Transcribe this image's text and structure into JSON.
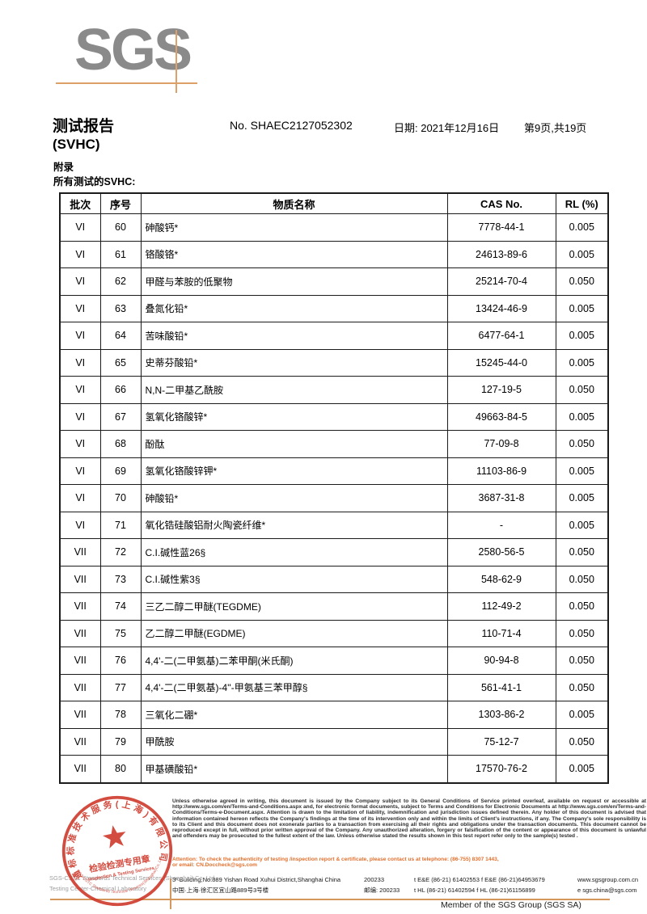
{
  "colors": {
    "logo_gray": "#8a8a8a",
    "rule_orange": "#dda167",
    "attention_orange": "#e0702e",
    "stamp_red": "#ce3426",
    "table_border": "#1b1b1b"
  },
  "header": {
    "logo_text": "SGS",
    "report_title": "测试报告",
    "report_subtitle": "(SVHC)",
    "report_no": "No. SHAEC2127052302",
    "date": "日期: 2021年12月16日",
    "page": "第9页,共19页",
    "appendix": "附录",
    "section_label": "所有测试的SVHC:"
  },
  "table": {
    "columns": [
      "批次",
      "序号",
      "物质名称",
      "CAS No.",
      "RL (%)"
    ],
    "rows": [
      {
        "batch": "VI",
        "no": "60",
        "name": "砷酸钙*",
        "cas": "7778-44-1",
        "rl": "0.005"
      },
      {
        "batch": "VI",
        "no": "61",
        "name": "铬酸铬*",
        "cas": "24613-89-6",
        "rl": "0.005"
      },
      {
        "batch": "VI",
        "no": "62",
        "name": "甲醛与苯胺的低聚物",
        "cas": "25214-70-4",
        "rl": "0.050"
      },
      {
        "batch": "VI",
        "no": "63",
        "name": "叠氮化铅*",
        "cas": "13424-46-9",
        "rl": "0.005"
      },
      {
        "batch": "VI",
        "no": "64",
        "name": "苦味酸铅*",
        "cas": "6477-64-1",
        "rl": "0.005"
      },
      {
        "batch": "VI",
        "no": "65",
        "name": "史蒂芬酸铅*",
        "cas": "15245-44-0",
        "rl": "0.005"
      },
      {
        "batch": "VI",
        "no": "66",
        "name": "N,N-二甲基乙酰胺",
        "cas": "127-19-5",
        "rl": "0.050"
      },
      {
        "batch": "VI",
        "no": "67",
        "name": "氢氧化铬酸锌*",
        "cas": "49663-84-5",
        "rl": "0.005"
      },
      {
        "batch": "VI",
        "no": "68",
        "name": "酚酞",
        "cas": "77-09-8",
        "rl": "0.050"
      },
      {
        "batch": "VI",
        "no": "69",
        "name": "氢氧化铬酸锌钾*",
        "cas": "11103-86-9",
        "rl": "0.005"
      },
      {
        "batch": "VI",
        "no": "70",
        "name": "砷酸铅*",
        "cas": "3687-31-8",
        "rl": "0.005"
      },
      {
        "batch": "VI",
        "no": "71",
        "name": "氧化锆硅酸铝耐火陶瓷纤维*",
        "cas": "-",
        "rl": "0.005"
      },
      {
        "batch": "VII",
        "no": "72",
        "name": "C.I.碱性蓝26§",
        "cas": "2580-56-5",
        "rl": "0.050"
      },
      {
        "batch": "VII",
        "no": "73",
        "name": "C.I.碱性紫3§",
        "cas": "548-62-9",
        "rl": "0.050"
      },
      {
        "batch": "VII",
        "no": "74",
        "name": "三乙二醇二甲醚(TEGDME)",
        "cas": "112-49-2",
        "rl": "0.050"
      },
      {
        "batch": "VII",
        "no": "75",
        "name": "乙二醇二甲醚(EGDME)",
        "cas": "110-71-4",
        "rl": "0.050"
      },
      {
        "batch": "VII",
        "no": "76",
        "name": "4,4'-二(二甲氨基)二苯甲酮(米氏酮)",
        "cas": "90-94-8",
        "rl": "0.050"
      },
      {
        "batch": "VII",
        "no": "77",
        "name": "4,4'-二(二甲氨基)-4''-甲氨基三苯甲醇§",
        "cas": "561-41-1",
        "rl": "0.050"
      },
      {
        "batch": "VII",
        "no": "78",
        "name": "三氧化二硼*",
        "cas": "1303-86-2",
        "rl": "0.005"
      },
      {
        "batch": "VII",
        "no": "79",
        "name": "甲酰胺",
        "cas": "75-12-7",
        "rl": "0.050"
      },
      {
        "batch": "VII",
        "no": "80",
        "name": "甲基磺酸铅*",
        "cas": "17570-76-2",
        "rl": "0.005"
      }
    ]
  },
  "footer": {
    "disclaimer": "Unless otherwise agreed in writing, this document is issued by the Company subject to its General Conditions of Service printed overleaf, available on request or accessible at http://www.sgs.com/en/Terms-and-Conditions.aspx and, for electronic format documents, subject to Terms and Conditions for Electronic Documents at http://www.sgs.com/en/Terms-and-Conditions/Terms-e-Document.aspx. Attention is drawn to the limitation of liability, indemnification and jurisdiction issues defined therein. Any holder of this document is advised that information contained hereon reflects the Company's findings at the time of its intervention only and within the limits of Client's instructions, if any. The Company's sole responsibility is to its Client and this document does not exonerate parties to a transaction from exercising all their rights and obligations under the transaction documents. This document cannot be reproduced except in full, without prior written approval of the Company. Any unauthorized alteration, forgery or falsification of the content or appearance of this document is unlawful and offenders may be prosecuted to the fullest extent of the law. Unless otherwise stated the results shown in this test report refer only to the sample(s) tested .",
    "attention_line1": "Attention: To check the authenticity of testing /inspection report & certificate, please contact us at telephone: (86-755) 8307 1443,",
    "attention_line2": "or email: CN.Doccheck@sgs.com",
    "address": {
      "line1": {
        "addr": "3ʳᵈBuilding,No.889 Yishan Road Xuhui District,Shanghai China",
        "post": "200233",
        "tel": "t E&E (86-21) 61402553  f E&E (86-21)64953679",
        "web": "www.sgsgroup.com.cn"
      },
      "line2": {
        "addr": "中国·上海·徐汇区宜山路889号3号楼",
        "post": "邮编: 200233",
        "tel": "t HL (86-21) 61402594  f HL (86-21)61156899",
        "web": "e  sgs.china@sgs.com"
      }
    },
    "member": "Member of the SGS Group (SGS SA)",
    "lab_line1": "SGS-CSTC Standards Technical Services (Shanghai) Co.,Ltd.",
    "lab_line2": "Testing Center-Chemical Laboratory",
    "stamp": {
      "top_arc": "通标标准技术服务(上海)有限公司",
      "bottom_arc": "SGS-CSTC Standards Technical Services(Shanghai)Co.,Ltd.",
      "center_line1": "检验检测专用章",
      "center_line2": "Inspection & Testing Services"
    }
  }
}
